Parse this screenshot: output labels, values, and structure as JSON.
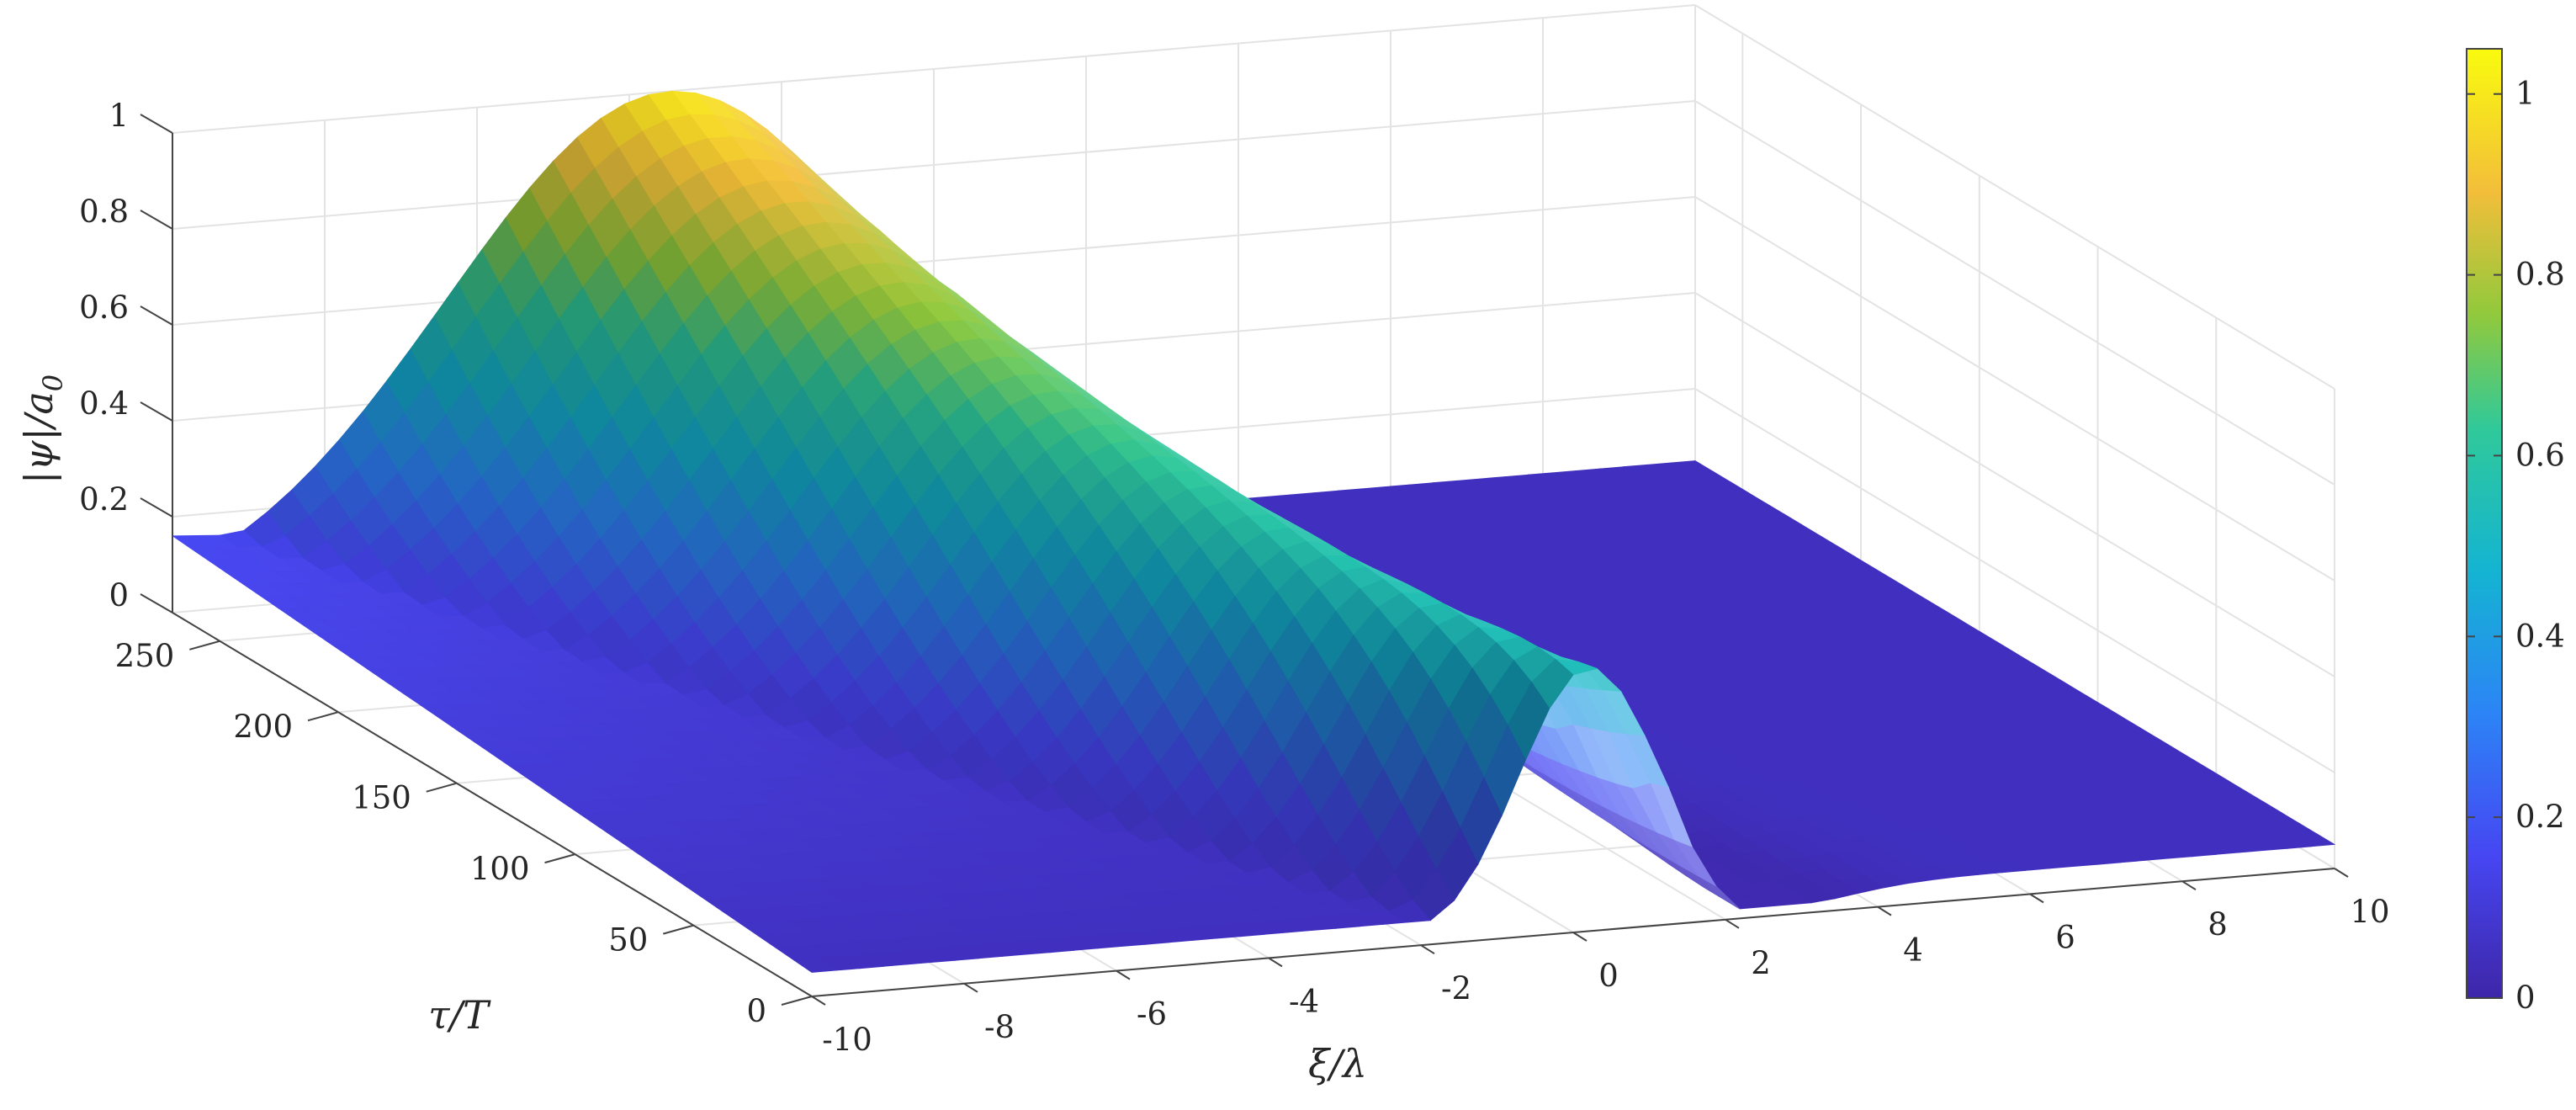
{
  "chart_data": {
    "type": "surface",
    "xlabel": "ξ/λ",
    "ylabel": "τ/T",
    "zlabel": "|ψ|/a",
    "zlabel_sub": "0",
    "xlim": [
      -10,
      10
    ],
    "ylim": [
      0,
      270
    ],
    "zlim": [
      0,
      1
    ],
    "x_ticks": [
      "-10",
      "-8",
      "-6",
      "-4",
      "-2",
      "0",
      "2",
      "4",
      "6",
      "8",
      "10"
    ],
    "y_ticks": [
      "0",
      "50",
      "100",
      "150",
      "200",
      "250"
    ],
    "z_ticks": [
      "0",
      "0.2",
      "0.4",
      "0.6",
      "0.8",
      "1"
    ],
    "colorbar_ticks": [
      "0",
      "0.2",
      "0.4",
      "0.6",
      "0.8",
      "1"
    ],
    "colorbar_range": [
      0,
      1.05
    ],
    "colormap": "parula",
    "grid": true,
    "peaks": [
      {
        "x": -3.5,
        "y": 260,
        "z": 1.0
      },
      {
        "x": 0.2,
        "y": 0,
        "z": 0.55
      }
    ]
  }
}
